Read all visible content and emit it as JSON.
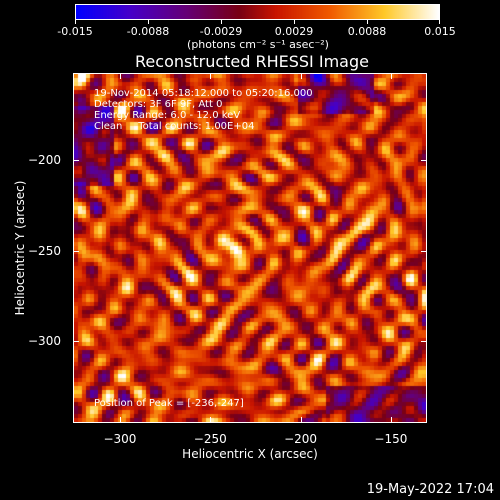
{
  "colorbar": {
    "tick_labels": [
      "-0.015",
      "-0.0088",
      "-0.0029",
      "0.0029",
      "0.0088",
      "0.015"
    ],
    "units": "(photons cm⁻² s⁻¹ asec⁻²)",
    "min": -0.015,
    "max": 0.015
  },
  "title": "Reconstructed RHESSI Image",
  "info_lines": [
    "19-Nov-2014 05:18:12.000 to 05:20:16.000",
    "Detectors: 3F 6F 9F, Att 0",
    "Energy Range: 6.0 - 12.0 keV",
    "Clean     Total counts: 1.00E+04"
  ],
  "peak_text": "Position of Peak = [-236,-247]",
  "chart_data": {
    "type": "heatmap",
    "title": "Reconstructed RHESSI Image",
    "xlabel": "Heliocentric X (arcsec)",
    "ylabel": "Heliocentric Y (arcsec)",
    "xlim": [
      -326,
      -130
    ],
    "ylim": [
      -345,
      -152
    ],
    "x_ticks": [
      -300,
      -250,
      -200,
      -150
    ],
    "y_ticks": [
      -200,
      -250,
      -300
    ],
    "colorbar_range": [
      -0.015,
      0.015
    ],
    "peak": {
      "x": -236,
      "y": -247
    }
  },
  "timestamp": "19-May-2022 17:04",
  "colors": {
    "background": "#000000",
    "text": "#ffffff"
  }
}
